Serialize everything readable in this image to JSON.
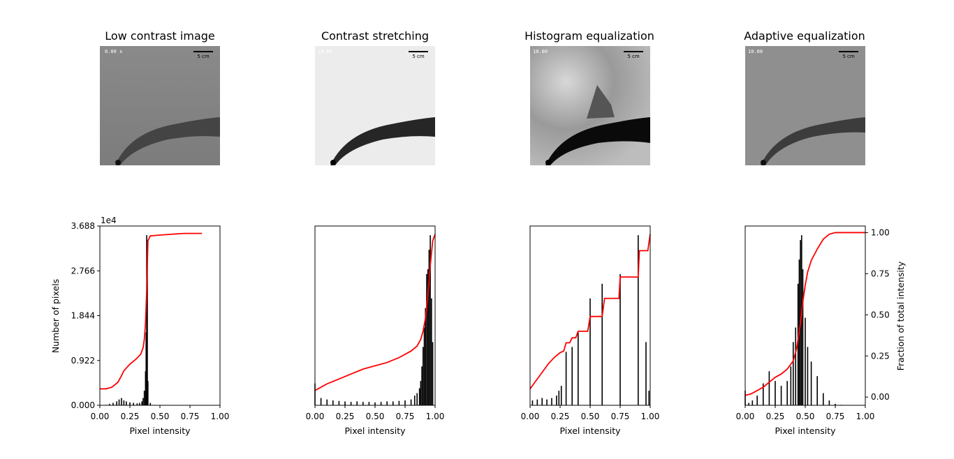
{
  "panels": [
    {
      "title": "Low contrast image",
      "xlabel": "Pixel intensity"
    },
    {
      "title": "Contrast stretching",
      "xlabel": "Pixel intensity"
    },
    {
      "title": "Histogram equalization",
      "xlabel": "Pixel intensity"
    },
    {
      "title": "Adaptive equalization",
      "xlabel": "Pixel intensity"
    }
  ],
  "ylabel_left": "Number of pixels",
  "ylabel_right": "Fraction of total intensity",
  "y_offset_label": "1e4",
  "image_overlay": {
    "timestamps": [
      "0.00 s",
      "10.00",
      "10.00",
      "10.00"
    ],
    "scale_label": "5 cm"
  },
  "colors": {
    "hist": "#000000",
    "cdf": "#ff0000"
  },
  "chart_data": [
    {
      "type": "bar",
      "title": "Low contrast image",
      "xlabel": "Pixel intensity",
      "ylabel": "Number of pixels",
      "xlim": [
        0,
        1
      ],
      "xticks": [
        "0.00",
        "0.25",
        "0.50",
        "0.75",
        "1.00"
      ],
      "ylim": [
        0,
        3.688
      ],
      "yticks": [
        "0.000",
        "0.922",
        "1.844",
        "2.766",
        "3.688"
      ],
      "y_scale_note": "1e4",
      "histogram": {
        "x": [
          0.02,
          0.05,
          0.08,
          0.11,
          0.14,
          0.16,
          0.18,
          0.2,
          0.22,
          0.25,
          0.28,
          0.31,
          0.33,
          0.35,
          0.36,
          0.37,
          0.38,
          0.385,
          0.39,
          0.395,
          0.4,
          0.42,
          0.45
        ],
        "y": [
          0.0,
          0.01,
          0.03,
          0.05,
          0.08,
          0.12,
          0.15,
          0.1,
          0.08,
          0.06,
          0.05,
          0.04,
          0.05,
          0.08,
          0.15,
          0.3,
          0.7,
          1.5,
          3.5,
          3.4,
          0.5,
          0.05,
          0.0
        ]
      },
      "cdf": {
        "x": [
          0.0,
          0.05,
          0.1,
          0.15,
          0.18,
          0.2,
          0.25,
          0.3,
          0.34,
          0.36,
          0.37,
          0.38,
          0.39,
          0.4,
          0.42,
          0.5,
          0.6,
          0.7,
          0.85
        ],
        "y": [
          0.05,
          0.05,
          0.06,
          0.09,
          0.13,
          0.16,
          0.2,
          0.23,
          0.26,
          0.3,
          0.35,
          0.45,
          0.65,
          0.95,
          0.98,
          0.985,
          0.99,
          0.995,
          0.995
        ]
      }
    },
    {
      "type": "bar",
      "title": "Contrast stretching",
      "xlabel": "Pixel intensity",
      "xlim": [
        0,
        1
      ],
      "xticks": [
        "0.00",
        "0.25",
        "0.50",
        "0.75",
        "1.00"
      ],
      "ylim": [
        0,
        3.688
      ],
      "histogram": {
        "x": [
          0.0,
          0.05,
          0.1,
          0.15,
          0.2,
          0.25,
          0.3,
          0.35,
          0.4,
          0.45,
          0.5,
          0.55,
          0.6,
          0.65,
          0.7,
          0.75,
          0.8,
          0.83,
          0.85,
          0.87,
          0.88,
          0.89,
          0.9,
          0.91,
          0.92,
          0.93,
          0.94,
          0.95,
          0.96,
          0.97,
          0.98
        ],
        "y": [
          0.45,
          0.15,
          0.12,
          0.1,
          0.09,
          0.08,
          0.07,
          0.08,
          0.07,
          0.07,
          0.06,
          0.07,
          0.08,
          0.08,
          0.09,
          0.1,
          0.12,
          0.2,
          0.25,
          0.35,
          0.5,
          0.8,
          1.2,
          1.6,
          2.0,
          2.7,
          2.8,
          3.2,
          3.5,
          2.2,
          1.3
        ]
      },
      "cdf": {
        "x": [
          0.0,
          0.05,
          0.1,
          0.2,
          0.3,
          0.4,
          0.5,
          0.6,
          0.7,
          0.75,
          0.8,
          0.85,
          0.88,
          0.9,
          0.92,
          0.94,
          0.96,
          0.98,
          1.0
        ],
        "y": [
          0.04,
          0.06,
          0.08,
          0.11,
          0.14,
          0.17,
          0.19,
          0.21,
          0.24,
          0.26,
          0.28,
          0.31,
          0.35,
          0.4,
          0.48,
          0.62,
          0.8,
          0.95,
          0.99
        ]
      }
    },
    {
      "type": "bar",
      "title": "Histogram equalization",
      "xlabel": "Pixel intensity",
      "xlim": [
        0,
        1
      ],
      "xticks": [
        "0.00",
        "0.25",
        "0.50",
        "0.75",
        "1.00"
      ],
      "ylim": [
        0,
        3.688
      ],
      "histogram": {
        "x": [
          0.02,
          0.06,
          0.1,
          0.14,
          0.18,
          0.22,
          0.24,
          0.26,
          0.3,
          0.35,
          0.4,
          0.5,
          0.6,
          0.75,
          0.9,
          0.965,
          0.99
        ],
        "y": [
          0.1,
          0.12,
          0.15,
          0.12,
          0.15,
          0.2,
          0.3,
          0.4,
          1.1,
          1.2,
          1.5,
          2.2,
          2.5,
          2.7,
          3.5,
          1.3,
          0.3
        ]
      },
      "cdf": {
        "x": [
          0.0,
          0.05,
          0.1,
          0.15,
          0.2,
          0.25,
          0.28,
          0.3,
          0.33,
          0.35,
          0.38,
          0.4,
          0.48,
          0.5,
          0.6,
          0.62,
          0.74,
          0.75,
          0.9,
          0.91,
          0.98,
          1.0
        ],
        "y": [
          0.05,
          0.1,
          0.15,
          0.2,
          0.24,
          0.27,
          0.28,
          0.33,
          0.33,
          0.36,
          0.36,
          0.4,
          0.4,
          0.49,
          0.49,
          0.6,
          0.6,
          0.73,
          0.73,
          0.89,
          0.89,
          0.99
        ]
      }
    },
    {
      "type": "bar",
      "title": "Adaptive equalization",
      "xlabel": "Pixel intensity",
      "ylabel_right": "Fraction of total intensity",
      "xlim": [
        0,
        1
      ],
      "xticks": [
        "0.00",
        "0.25",
        "0.50",
        "0.75",
        "1.00"
      ],
      "y2lim": [
        -0.05,
        1.04
      ],
      "y2ticks": [
        "0.00",
        "0.25",
        "0.50",
        "0.75",
        "1.00"
      ],
      "histogram": {
        "x": [
          0.0,
          0.03,
          0.06,
          0.1,
          0.15,
          0.2,
          0.25,
          0.3,
          0.35,
          0.38,
          0.4,
          0.42,
          0.44,
          0.45,
          0.46,
          0.47,
          0.48,
          0.5,
          0.52,
          0.55,
          0.6,
          0.65,
          0.7,
          0.75,
          0.8,
          0.9,
          1.0
        ],
        "y": [
          0.3,
          0.05,
          0.1,
          0.2,
          0.45,
          0.7,
          0.5,
          0.4,
          0.5,
          0.8,
          1.3,
          1.6,
          2.5,
          3.0,
          3.4,
          3.5,
          2.8,
          1.8,
          1.2,
          0.9,
          0.6,
          0.25,
          0.1,
          0.03,
          0.01,
          0.0,
          0.0
        ]
      },
      "cdf": {
        "x": [
          0.0,
          0.05,
          0.1,
          0.15,
          0.2,
          0.25,
          0.3,
          0.35,
          0.4,
          0.43,
          0.46,
          0.48,
          0.5,
          0.52,
          0.55,
          0.6,
          0.65,
          0.7,
          0.75,
          0.8,
          0.9,
          1.0
        ],
        "y": [
          0.01,
          0.02,
          0.04,
          0.06,
          0.09,
          0.12,
          0.14,
          0.17,
          0.22,
          0.3,
          0.45,
          0.58,
          0.68,
          0.76,
          0.83,
          0.9,
          0.96,
          0.99,
          1.0,
          1.0,
          1.0,
          1.0
        ]
      }
    }
  ]
}
